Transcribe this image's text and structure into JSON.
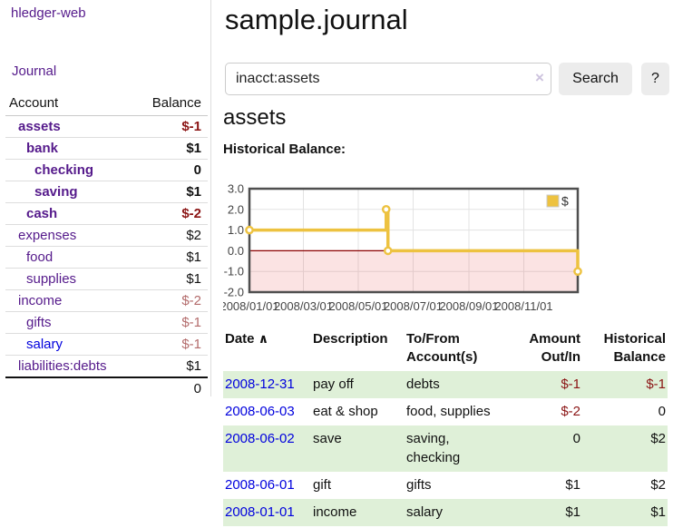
{
  "app": {
    "title": "hledger-web"
  },
  "sidebar": {
    "journal_label": "Journal",
    "accounts_table": {
      "headers": {
        "account": "Account",
        "balance": "Balance"
      },
      "rows": [
        {
          "label": "assets",
          "balance": "$-1",
          "indent": 1,
          "bold": true,
          "label_style": "purple",
          "balance_style": "negative"
        },
        {
          "label": "bank",
          "balance": "$1",
          "indent": 2,
          "bold": true,
          "label_style": "purple",
          "balance_style": "normal"
        },
        {
          "label": "checking",
          "balance": "0",
          "indent": 3,
          "bold": true,
          "label_style": "purple",
          "balance_style": "normal"
        },
        {
          "label": "saving",
          "balance": "$1",
          "indent": 3,
          "bold": true,
          "label_style": "purple",
          "balance_style": "normal"
        },
        {
          "label": "cash",
          "balance": "$-2",
          "indent": 2,
          "bold": true,
          "label_style": "purple",
          "balance_style": "negative"
        },
        {
          "label": "expenses",
          "balance": "$2",
          "indent": 1,
          "bold": false,
          "label_style": "purple",
          "balance_style": "normal"
        },
        {
          "label": "food",
          "balance": "$1",
          "indent": 2,
          "bold": false,
          "label_style": "purple",
          "balance_style": "normal"
        },
        {
          "label": "supplies",
          "balance": "$1",
          "indent": 2,
          "bold": false,
          "label_style": "purple",
          "balance_style": "normal"
        },
        {
          "label": "income",
          "balance": "$-2",
          "indent": 1,
          "bold": false,
          "label_style": "purple",
          "balance_style": "negative-muted"
        },
        {
          "label": "gifts",
          "balance": "$-1",
          "indent": 2,
          "bold": false,
          "label_style": "purple",
          "balance_style": "negative-muted"
        },
        {
          "label": "salary",
          "balance": "$-1",
          "indent": 2,
          "bold": false,
          "label_style": "blue",
          "balance_style": "negative-muted"
        },
        {
          "label": "liabilities:debts",
          "balance": "$1",
          "indent": 1,
          "bold": false,
          "label_style": "purple",
          "balance_style": "normal"
        }
      ],
      "total": "0"
    }
  },
  "header": {
    "title": "sample.journal"
  },
  "search": {
    "value": "inacct:assets",
    "clear_icon": "×",
    "button_label": "Search",
    "help_label": "?"
  },
  "page": {
    "heading": "assets",
    "chart_title": "Historical Balance:"
  },
  "chart_data": {
    "type": "line",
    "title": "Historical Balance:",
    "legend": {
      "label": "$",
      "position": "top-right"
    },
    "series": [
      {
        "name": "$",
        "color": "#edc240",
        "step": true,
        "points": [
          {
            "date": "2008-01-01",
            "day": 0,
            "value": 1
          },
          {
            "date": "2008-06-01",
            "day": 152,
            "value": 2
          },
          {
            "date": "2008-06-03",
            "day": 154,
            "value": 0
          },
          {
            "date": "2008-12-31",
            "day": 365,
            "value": -1
          }
        ]
      }
    ],
    "x_ticks": [
      {
        "label": "2008/01/01",
        "day": 0
      },
      {
        "label": "2008/03/01",
        "day": 60
      },
      {
        "label": "2008/05/01",
        "day": 121
      },
      {
        "label": "2008/07/01",
        "day": 182
      },
      {
        "label": "2008/09/01",
        "day": 244
      },
      {
        "label": "2008/11/01",
        "day": 305
      }
    ],
    "y_ticks": [
      {
        "label": "3.0",
        "value": 3
      },
      {
        "label": "2.0",
        "value": 2
      },
      {
        "label": "1.0",
        "value": 1
      },
      {
        "label": "0.0",
        "value": 0
      },
      {
        "label": "-1.0",
        "value": -1
      },
      {
        "label": "-2.0",
        "value": -2
      }
    ],
    "ylim": [
      -2,
      3
    ],
    "x_range_days": [
      0,
      365
    ],
    "grid": true,
    "negative_region": true,
    "colors": {
      "grid": "#e3e3e3",
      "border": "#4f4f4f",
      "zero_line": "#8b0000",
      "negative_fill": "rgba(230,80,80,0.16)",
      "tick_text": "#444444"
    }
  },
  "register_table": {
    "sort_icon": "∧",
    "headers": {
      "date": "Date",
      "description": "Description",
      "accounts": "To/From Account(s)",
      "amount": "Amount Out/In",
      "balance": "Historical Balance"
    },
    "rows": [
      {
        "date": "2008-12-31",
        "description": "pay off",
        "accounts": "debts",
        "amount": "$-1",
        "amount_negative": true,
        "balance": "$-1",
        "balance_negative": true
      },
      {
        "date": "2008-06-03",
        "description": "eat & shop",
        "accounts": "food, supplies",
        "amount": "$-2",
        "amount_negative": true,
        "balance": "0",
        "balance_negative": false
      },
      {
        "date": "2008-06-02",
        "description": "save",
        "accounts": "saving, checking",
        "amount": "0",
        "amount_negative": false,
        "balance": "$2",
        "balance_negative": false
      },
      {
        "date": "2008-06-01",
        "description": "gift",
        "accounts": "gifts",
        "amount": "$1",
        "amount_negative": false,
        "balance": "$2",
        "balance_negative": false
      },
      {
        "date": "2008-01-01",
        "description": "income",
        "accounts": "salary",
        "amount": "$1",
        "amount_negative": false,
        "balance": "$1",
        "balance_negative": false
      }
    ]
  }
}
